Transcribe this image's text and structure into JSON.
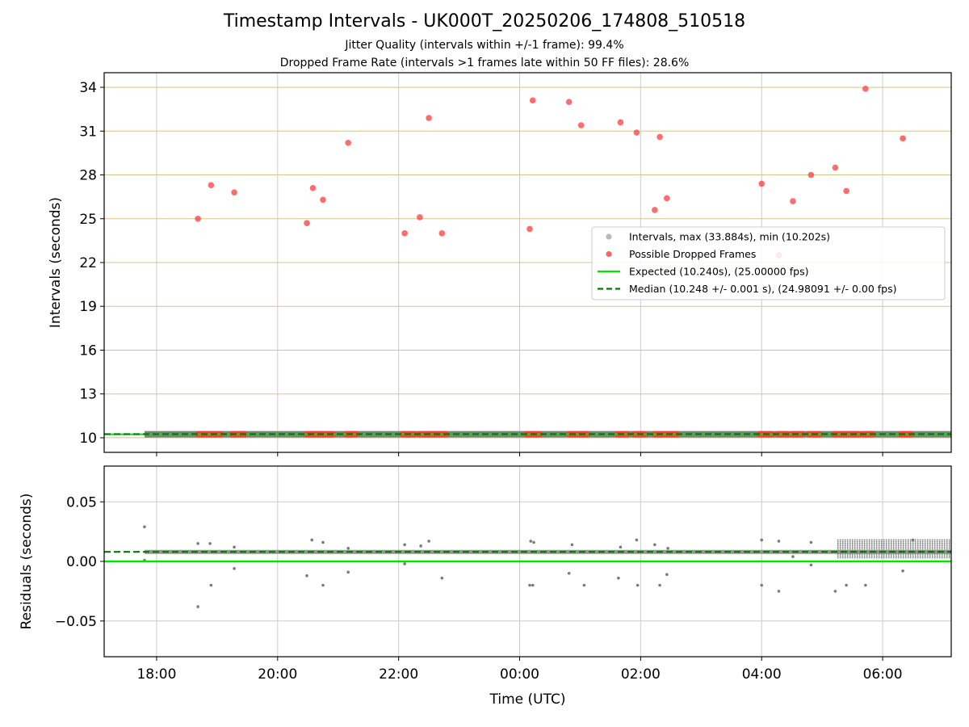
{
  "title": "Timestamp Intervals - UK000T_20250206_174808_510518",
  "subtitle_1": "Jitter Quality (intervals within +/-1 frame): 99.4%",
  "subtitle_2": "Dropped Frame Rate (intervals >1 frames late within 50 FF files): 28.6%",
  "chart_data": [
    {
      "type": "scatter",
      "name": "intervals",
      "xlabel": "",
      "ylabel": "Intervals (seconds)",
      "xlim": [
        "2025-02-06 17:08",
        "2025-02-07 07:08"
      ],
      "ylim": [
        9.0,
        35.0
      ],
      "yticks": [
        10,
        13,
        16,
        19,
        22,
        25,
        28,
        31,
        34
      ],
      "grid": true,
      "legend_position": "center-right",
      "legend": [
        {
          "label": "Intervals, max (33.884s), min (10.202s)",
          "kind": "marker",
          "color": "#a9a9a9"
        },
        {
          "label": "Possible Dropped Frames",
          "kind": "marker",
          "color": "#ff3b3b"
        },
        {
          "label": "Expected (10.240s), (25.00000 fps)",
          "kind": "line",
          "color": "#00e600"
        },
        {
          "label": "Median (10.248 +/- 0.001 s), (24.98091 +/- 0.00 fps)",
          "kind": "dashed",
          "color": "#007a00"
        }
      ],
      "expected_interval": 10.24,
      "median_interval": 10.248,
      "intervals_band": {
        "from": "2025-02-06 17:48",
        "to": "2025-02-07 07:08",
        "value": 10.24,
        "color": "#808080"
      },
      "dropped_frames": [
        {
          "x": "2025-02-06 18:41",
          "y": 25.0
        },
        {
          "x": "2025-02-06 18:54",
          "y": 27.3
        },
        {
          "x": "2025-02-06 19:17",
          "y": 26.8
        },
        {
          "x": "2025-02-06 20:29",
          "y": 24.7
        },
        {
          "x": "2025-02-06 20:35",
          "y": 27.1
        },
        {
          "x": "2025-02-06 20:45",
          "y": 26.3
        },
        {
          "x": "2025-02-06 21:10",
          "y": 30.2
        },
        {
          "x": "2025-02-06 22:06",
          "y": 24.0
        },
        {
          "x": "2025-02-06 22:21",
          "y": 25.1
        },
        {
          "x": "2025-02-06 22:30",
          "y": 31.9
        },
        {
          "x": "2025-02-06 22:43",
          "y": 24.0
        },
        {
          "x": "2025-02-07 00:10",
          "y": 24.3
        },
        {
          "x": "2025-02-07 00:13",
          "y": 33.1
        },
        {
          "x": "2025-02-07 00:49",
          "y": 33.0
        },
        {
          "x": "2025-02-07 01:01",
          "y": 31.4
        },
        {
          "x": "2025-02-07 01:40",
          "y": 31.6
        },
        {
          "x": "2025-02-07 01:56",
          "y": 30.9
        },
        {
          "x": "2025-02-07 02:14",
          "y": 25.6
        },
        {
          "x": "2025-02-07 02:19",
          "y": 30.6
        },
        {
          "x": "2025-02-07 02:26",
          "y": 26.4
        },
        {
          "x": "2025-02-07 04:00",
          "y": 27.4
        },
        {
          "x": "2025-02-07 04:17",
          "y": 22.5
        },
        {
          "x": "2025-02-07 04:31",
          "y": 26.2
        },
        {
          "x": "2025-02-07 04:49",
          "y": 28.0
        },
        {
          "x": "2025-02-07 05:13",
          "y": 28.5
        },
        {
          "x": "2025-02-07 05:24",
          "y": 26.9
        },
        {
          "x": "2025-02-07 05:43",
          "y": 33.9
        },
        {
          "x": "2025-02-07 06:20",
          "y": 30.5
        }
      ],
      "dropped_frames_baseline": [
        [
          "2025-02-06 18:41",
          "2025-02-06 19:04"
        ],
        [
          "2025-02-06 19:15",
          "2025-02-06 19:27"
        ],
        [
          "2025-02-06 20:29",
          "2025-02-06 20:55"
        ],
        [
          "2025-02-06 21:08",
          "2025-02-06 21:18"
        ],
        [
          "2025-02-06 22:04",
          "2025-02-06 22:15"
        ],
        [
          "2025-02-06 22:20",
          "2025-02-06 22:47"
        ],
        [
          "2025-02-07 00:07",
          "2025-02-07 00:20"
        ],
        [
          "2025-02-07 00:49",
          "2025-02-07 01:07"
        ],
        [
          "2025-02-07 01:37",
          "2025-02-07 01:47"
        ],
        [
          "2025-02-07 01:54",
          "2025-02-07 02:04"
        ],
        [
          "2025-02-07 02:14",
          "2025-02-07 02:36"
        ],
        [
          "2025-02-07 03:58",
          "2025-02-07 04:10"
        ],
        [
          "2025-02-07 04:16",
          "2025-02-07 04:26"
        ],
        [
          "2025-02-07 04:30",
          "2025-02-07 04:40"
        ],
        [
          "2025-02-07 04:47",
          "2025-02-07 04:57"
        ],
        [
          "2025-02-07 05:12",
          "2025-02-07 05:36"
        ],
        [
          "2025-02-07 05:40",
          "2025-02-07 05:50"
        ],
        [
          "2025-02-07 06:18",
          "2025-02-07 06:28"
        ]
      ]
    },
    {
      "type": "scatter",
      "name": "residuals",
      "xlabel": "Time (UTC)",
      "ylabel": "Residuals (seconds)",
      "xlim": [
        "2025-02-06 17:08",
        "2025-02-07 07:08"
      ],
      "ylim": [
        -0.08,
        0.08
      ],
      "yticks": [
        -0.05,
        0.0,
        0.05
      ],
      "ytick_labels": [
        "−0.05",
        "0.00",
        "0.05"
      ],
      "xticks": [
        "2025-02-06 18:00",
        "2025-02-06 20:00",
        "2025-02-06 22:00",
        "2025-02-07 00:00",
        "2025-02-07 02:00",
        "2025-02-07 04:00",
        "2025-02-07 06:00"
      ],
      "xtick_labels": [
        "18:00",
        "20:00",
        "22:00",
        "00:00",
        "02:00",
        "04:00",
        "06:00"
      ],
      "grid": true,
      "expected_residual": 0.0,
      "median_residual": 0.008,
      "dense_band": {
        "from": "2025-02-07 05:15",
        "to": "2025-02-07 07:08",
        "y_from": 0.002,
        "y_to": 0.018
      },
      "points": [
        {
          "x": "2025-02-06 17:48",
          "y": 0.029
        },
        {
          "x": "2025-02-06 17:48",
          "y": 0.001
        },
        {
          "x": "2025-02-06 18:41",
          "y": -0.038
        },
        {
          "x": "2025-02-06 18:41",
          "y": 0.015
        },
        {
          "x": "2025-02-06 18:53",
          "y": 0.015
        },
        {
          "x": "2025-02-06 18:54",
          "y": -0.02
        },
        {
          "x": "2025-02-06 19:17",
          "y": -0.006
        },
        {
          "x": "2025-02-06 19:17",
          "y": 0.012
        },
        {
          "x": "2025-02-06 20:29",
          "y": -0.012
        },
        {
          "x": "2025-02-06 20:34",
          "y": 0.018
        },
        {
          "x": "2025-02-06 20:45",
          "y": 0.016
        },
        {
          "x": "2025-02-06 20:45",
          "y": -0.02
        },
        {
          "x": "2025-02-06 21:10",
          "y": -0.009
        },
        {
          "x": "2025-02-06 21:10",
          "y": 0.011
        },
        {
          "x": "2025-02-06 22:06",
          "y": 0.014
        },
        {
          "x": "2025-02-06 22:06",
          "y": -0.002
        },
        {
          "x": "2025-02-06 22:22",
          "y": 0.013
        },
        {
          "x": "2025-02-06 22:30",
          "y": 0.017
        },
        {
          "x": "2025-02-06 22:43",
          "y": -0.014
        },
        {
          "x": "2025-02-07 00:10",
          "y": -0.02
        },
        {
          "x": "2025-02-07 00:13",
          "y": -0.02
        },
        {
          "x": "2025-02-07 00:11",
          "y": 0.017
        },
        {
          "x": "2025-02-07 00:14",
          "y": 0.016
        },
        {
          "x": "2025-02-07 00:49",
          "y": -0.01
        },
        {
          "x": "2025-02-07 00:52",
          "y": 0.014
        },
        {
          "x": "2025-02-07 01:04",
          "y": -0.02
        },
        {
          "x": "2025-02-07 01:38",
          "y": -0.014
        },
        {
          "x": "2025-02-07 01:40",
          "y": 0.012
        },
        {
          "x": "2025-02-07 01:56",
          "y": 0.018
        },
        {
          "x": "2025-02-07 01:57",
          "y": -0.02
        },
        {
          "x": "2025-02-07 02:14",
          "y": 0.014
        },
        {
          "x": "2025-02-07 02:19",
          "y": -0.02
        },
        {
          "x": "2025-02-07 02:26",
          "y": -0.011
        },
        {
          "x": "2025-02-07 02:27",
          "y": 0.011
        },
        {
          "x": "2025-02-07 04:00",
          "y": -0.02
        },
        {
          "x": "2025-02-07 04:00",
          "y": 0.018
        },
        {
          "x": "2025-02-07 04:17",
          "y": -0.025
        },
        {
          "x": "2025-02-07 04:17",
          "y": 0.017
        },
        {
          "x": "2025-02-07 04:31",
          "y": 0.004
        },
        {
          "x": "2025-02-07 04:49",
          "y": 0.016
        },
        {
          "x": "2025-02-07 04:49",
          "y": -0.003
        },
        {
          "x": "2025-02-07 05:13",
          "y": -0.025
        },
        {
          "x": "2025-02-07 05:24",
          "y": -0.02
        },
        {
          "x": "2025-02-07 05:43",
          "y": -0.02
        },
        {
          "x": "2025-02-07 06:20",
          "y": -0.008
        },
        {
          "x": "2025-02-07 06:30",
          "y": 0.018
        }
      ]
    }
  ],
  "colors": {
    "dropped": "#ff3b3b",
    "interval": "#808080",
    "expected": "#00e600",
    "median": "#007a00",
    "grid_top": "#d4c58a",
    "grid_bottom": "#cccccc",
    "residual": "#7a7a7a"
  }
}
